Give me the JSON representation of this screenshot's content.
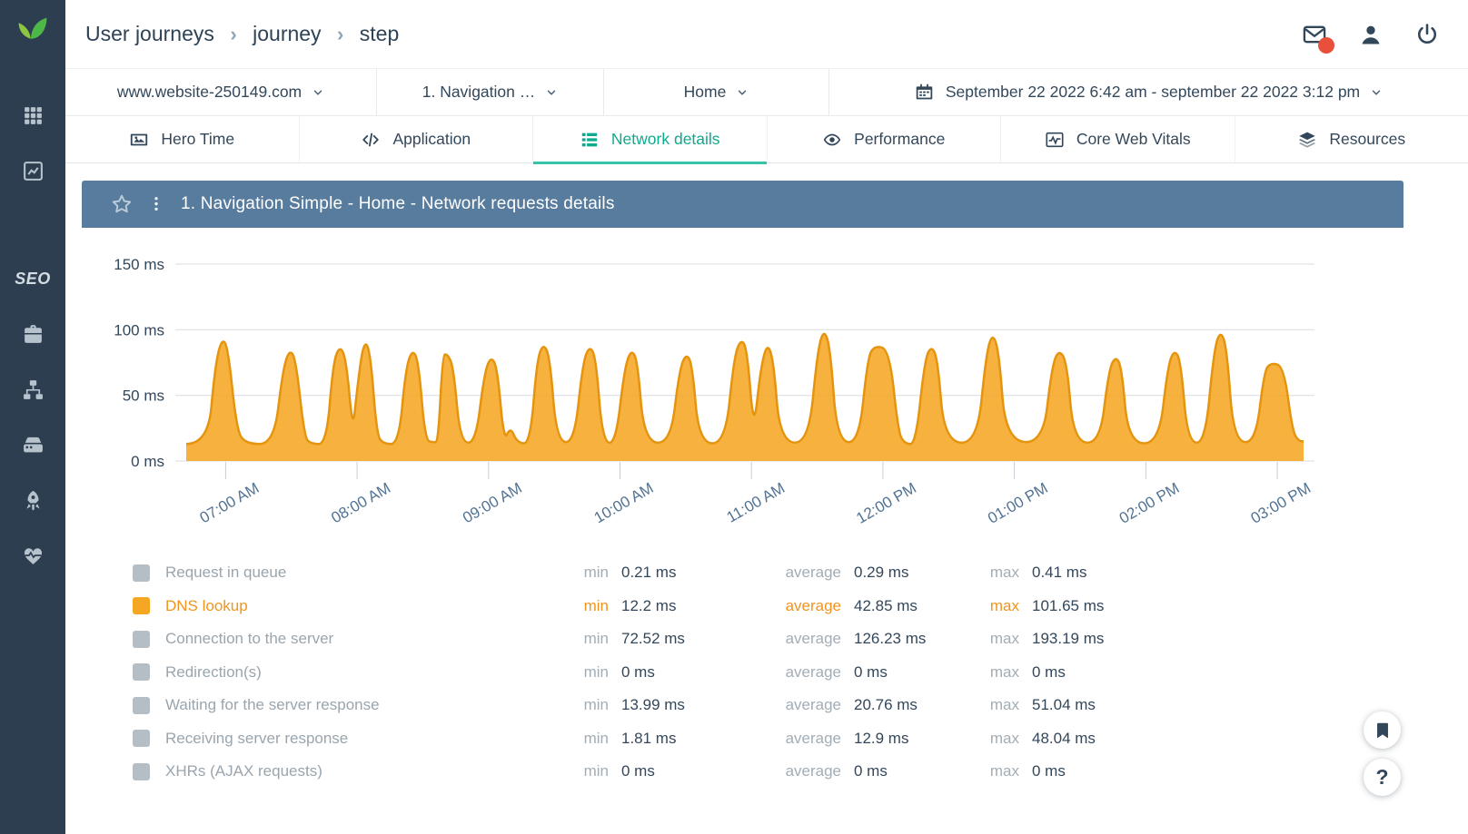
{
  "colors": {
    "sidebar_bg": "#2d3e50",
    "accent_teal": "#0faa8e",
    "panel_header_bg": "#587c9e",
    "series_orange": "#f5a623",
    "badge_red": "#e8503c",
    "text_navy": "#33475b",
    "muted_gray": "#9aa5ad"
  },
  "header": {
    "breadcrumb": [
      "User journeys",
      "journey",
      "step"
    ]
  },
  "topbar_icons": [
    {
      "name": "messages",
      "icon": "envelope",
      "badge": true
    },
    {
      "name": "account",
      "icon": "person"
    },
    {
      "name": "logout",
      "icon": "power"
    }
  ],
  "sidebar": {
    "items": [
      {
        "icon": "apps-grid",
        "name": "apps-grid"
      },
      {
        "icon": "line-chart",
        "name": "analytics"
      },
      {
        "text": "SEO",
        "name": "seo",
        "gap_before": true
      },
      {
        "icon": "briefcase",
        "name": "toolbox"
      },
      {
        "icon": "sitemap",
        "name": "sitemap"
      },
      {
        "icon": "hdd",
        "name": "server"
      },
      {
        "icon": "rocket",
        "name": "rocket"
      },
      {
        "icon": "heart-pulse",
        "name": "health"
      }
    ]
  },
  "filters": {
    "website": "www.website-250149.com",
    "journey": "1. Navigation …",
    "step": "Home",
    "date_range": "September 22 2022 6:42 am - september 22 2022 3:12 pm"
  },
  "tabs": [
    {
      "label": "Hero Time",
      "icon": "image"
    },
    {
      "label": "Application",
      "icon": "code"
    },
    {
      "label": "Network details",
      "icon": "table-rows",
      "active": true
    },
    {
      "label": "Performance",
      "icon": "eye"
    },
    {
      "label": "Core Web Vitals",
      "icon": "vitals"
    },
    {
      "label": "Resources",
      "icon": "layers"
    }
  ],
  "panel": {
    "title": "1. Navigation Simple - Home - Network requests details"
  },
  "chart_data": {
    "type": "area",
    "title": "1. Navigation Simple - Home - Network requests details",
    "unit": "ms",
    "ylim": [
      0,
      155
    ],
    "grid": true,
    "y_ticks": [
      {
        "value": 150,
        "label": "150 ms"
      },
      {
        "value": 100,
        "label": "100 ms"
      },
      {
        "value": 50,
        "label": "50 ms"
      },
      {
        "value": 0,
        "label": "0 ms"
      }
    ],
    "total_minutes": 510,
    "x_ticks": [
      {
        "minute": 18,
        "label": "07:00 AM"
      },
      {
        "minute": 78,
        "label": "08:00 AM"
      },
      {
        "minute": 138,
        "label": "09:00 AM"
      },
      {
        "minute": 198,
        "label": "10:00 AM"
      },
      {
        "minute": 258,
        "label": "11:00 AM"
      },
      {
        "minute": 318,
        "label": "12:00 PM"
      },
      {
        "minute": 378,
        "label": "01:00 PM"
      },
      {
        "minute": 438,
        "label": "02:00 PM"
      },
      {
        "minute": 498,
        "label": "03:00 PM"
      }
    ],
    "series": [
      {
        "name": "DNS lookup",
        "color": "#f5a623",
        "stroke": "#e5940e",
        "points": [
          [
            0,
            13
          ],
          [
            10,
            13
          ],
          [
            13,
            70
          ],
          [
            16,
            93
          ],
          [
            19,
            88
          ],
          [
            23,
            24
          ],
          [
            27,
            13
          ],
          [
            40,
            13
          ],
          [
            44,
            68
          ],
          [
            47,
            85
          ],
          [
            50,
            78
          ],
          [
            54,
            18
          ],
          [
            57,
            13
          ],
          [
            64,
            13
          ],
          [
            67,
            74
          ],
          [
            70,
            88
          ],
          [
            73,
            78
          ],
          [
            76,
            22
          ],
          [
            78,
            55
          ],
          [
            81,
            92
          ],
          [
            84,
            84
          ],
          [
            87,
            20
          ],
          [
            90,
            13
          ],
          [
            97,
            13
          ],
          [
            100,
            68
          ],
          [
            103,
            85
          ],
          [
            106,
            77
          ],
          [
            109,
            16
          ],
          [
            113,
            14
          ],
          [
            115,
            15
          ],
          [
            117,
            80
          ],
          [
            119,
            82
          ],
          [
            122,
            72
          ],
          [
            125,
            15
          ],
          [
            132,
            13
          ],
          [
            136,
            66
          ],
          [
            139,
            80
          ],
          [
            142,
            71
          ],
          [
            145,
            15
          ],
          [
            148,
            26
          ],
          [
            151,
            14
          ],
          [
            157,
            13
          ],
          [
            160,
            76
          ],
          [
            163,
            90
          ],
          [
            166,
            79
          ],
          [
            169,
            16
          ],
          [
            177,
            13
          ],
          [
            181,
            74
          ],
          [
            184,
            88
          ],
          [
            187,
            79
          ],
          [
            190,
            15
          ],
          [
            196,
            13
          ],
          [
            200,
            70
          ],
          [
            203,
            85
          ],
          [
            206,
            77
          ],
          [
            209,
            15
          ],
          [
            221,
            13
          ],
          [
            225,
            68
          ],
          [
            228,
            82
          ],
          [
            231,
            74
          ],
          [
            234,
            14
          ],
          [
            246,
            13
          ],
          [
            250,
            78
          ],
          [
            253,
            93
          ],
          [
            256,
            86
          ],
          [
            259,
            22
          ],
          [
            262,
            68
          ],
          [
            265,
            90
          ],
          [
            268,
            78
          ],
          [
            271,
            15
          ],
          [
            284,
            13
          ],
          [
            288,
            82
          ],
          [
            291,
            101
          ],
          [
            294,
            86
          ],
          [
            297,
            16
          ],
          [
            307,
            13
          ],
          [
            311,
            78
          ],
          [
            314,
            88
          ],
          [
            321,
            85
          ],
          [
            325,
            22
          ],
          [
            328,
            13
          ],
          [
            333,
            13
          ],
          [
            337,
            76
          ],
          [
            340,
            88
          ],
          [
            343,
            78
          ],
          [
            346,
            15
          ],
          [
            361,
            13
          ],
          [
            365,
            80
          ],
          [
            368,
            98
          ],
          [
            371,
            83
          ],
          [
            374,
            16
          ],
          [
            391,
            13
          ],
          [
            395,
            70
          ],
          [
            398,
            85
          ],
          [
            402,
            76
          ],
          [
            405,
            15
          ],
          [
            417,
            13
          ],
          [
            421,
            68
          ],
          [
            424,
            80
          ],
          [
            427,
            72
          ],
          [
            430,
            14
          ],
          [
            444,
            13
          ],
          [
            448,
            72
          ],
          [
            451,
            85
          ],
          [
            454,
            76
          ],
          [
            457,
            15
          ],
          [
            465,
            13
          ],
          [
            469,
            83
          ],
          [
            472,
            100
          ],
          [
            475,
            86
          ],
          [
            478,
            16
          ],
          [
            488,
            13
          ],
          [
            492,
            68
          ],
          [
            495,
            75
          ],
          [
            501,
            72
          ],
          [
            505,
            22
          ],
          [
            508,
            15
          ],
          [
            510,
            15
          ]
        ]
      }
    ]
  },
  "legend": {
    "stat_labels": {
      "min": "min",
      "average": "average",
      "max": "max"
    },
    "rows": [
      {
        "label": "Request in queue",
        "min": "0.21 ms",
        "average": "0.29 ms",
        "max": "0.41 ms",
        "active": false
      },
      {
        "label": "DNS lookup",
        "min": "12.2 ms",
        "average": "42.85 ms",
        "max": "101.65 ms",
        "active": true
      },
      {
        "label": "Connection to the server",
        "min": "72.52 ms",
        "average": "126.23 ms",
        "max": "193.19 ms",
        "active": false
      },
      {
        "label": "Redirection(s)",
        "min": "0 ms",
        "average": "0 ms",
        "max": "0 ms",
        "active": false
      },
      {
        "label": "Waiting for the server response",
        "min": "13.99 ms",
        "average": "20.76 ms",
        "max": "51.04 ms",
        "active": false
      },
      {
        "label": "Receiving server response",
        "min": "1.81 ms",
        "average": "12.9 ms",
        "max": "48.04 ms",
        "active": false
      },
      {
        "label": "XHRs (AJAX requests)",
        "min": "0 ms",
        "average": "0 ms",
        "max": "0 ms",
        "active": false
      }
    ]
  },
  "floating": {
    "help_label": "?"
  }
}
